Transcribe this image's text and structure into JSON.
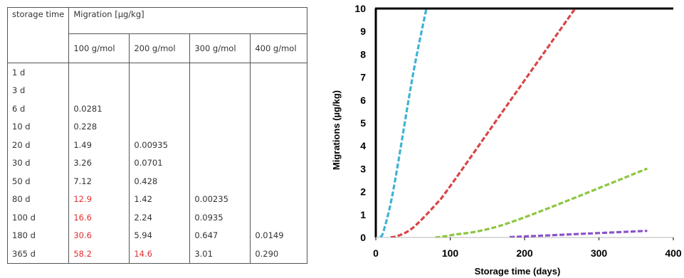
{
  "table": {
    "corner_label": "storage time",
    "group_header": "Migration [µg/kg]",
    "columns": [
      "100 g/mol",
      "200 g/mol",
      "300 g/mol",
      "400 g/mol"
    ],
    "rows": [
      {
        "time": "1 d",
        "cells": [
          "",
          "",
          "",
          ""
        ],
        "red": [
          false,
          false,
          false,
          false
        ]
      },
      {
        "time": "3 d",
        "cells": [
          "",
          "",
          "",
          ""
        ],
        "red": [
          false,
          false,
          false,
          false
        ]
      },
      {
        "time": "6 d",
        "cells": [
          "0.0281",
          "",
          "",
          ""
        ],
        "red": [
          false,
          false,
          false,
          false
        ]
      },
      {
        "time": "10 d",
        "cells": [
          "0.228",
          "",
          "",
          ""
        ],
        "red": [
          false,
          false,
          false,
          false
        ]
      },
      {
        "time": "20 d",
        "cells": [
          "1.49",
          "0.00935",
          "",
          ""
        ],
        "red": [
          false,
          false,
          false,
          false
        ]
      },
      {
        "time": "30 d",
        "cells": [
          "3.26",
          "0.0701",
          "",
          ""
        ],
        "red": [
          false,
          false,
          false,
          false
        ]
      },
      {
        "time": "50 d",
        "cells": [
          "7.12",
          "0.428",
          "",
          ""
        ],
        "red": [
          false,
          false,
          false,
          false
        ]
      },
      {
        "time": "80 d",
        "cells": [
          "12.9",
          "1.42",
          "0.00235",
          ""
        ],
        "red": [
          true,
          false,
          false,
          false
        ]
      },
      {
        "time": "100 d",
        "cells": [
          "16.6",
          "2.24",
          "0.0935",
          ""
        ],
        "red": [
          true,
          false,
          false,
          false
        ]
      },
      {
        "time": "180 d",
        "cells": [
          "30.6",
          "5.94",
          "0.647",
          "0.0149"
        ],
        "red": [
          true,
          false,
          false,
          false
        ]
      },
      {
        "time": "365 d",
        "cells": [
          "58.2",
          "14.6",
          "3.01",
          "0.290"
        ],
        "red": [
          true,
          true,
          false,
          false
        ]
      }
    ],
    "highlight_color": "#e03030"
  },
  "chart_data": {
    "type": "line",
    "title": "",
    "xlabel": "Storage time (days)",
    "ylabel": "Migrations (µg/kg)",
    "xlim": [
      0,
      400
    ],
    "ylim": [
      0,
      10
    ],
    "xticks": [
      0,
      100,
      200,
      300,
      400
    ],
    "yticks": [
      0,
      1,
      2,
      3,
      4,
      5,
      6,
      7,
      8,
      9,
      10
    ],
    "grid": false,
    "line_style": "dashed",
    "series": [
      {
        "color": "#3fb3d4",
        "x": [
          6,
          10,
          20,
          30,
          50,
          68
        ],
        "y": [
          0.0281,
          0.228,
          1.49,
          3.26,
          7.12,
          10
        ]
      },
      {
        "color": "#d94545",
        "x": [
          20,
          30,
          50,
          80,
          100,
          180,
          268
        ],
        "y": [
          0.00935,
          0.0701,
          0.428,
          1.42,
          2.24,
          5.94,
          10
        ]
      },
      {
        "color": "#8dc63f",
        "x": [
          80,
          100,
          180,
          365
        ],
        "y": [
          0.00235,
          0.0935,
          0.647,
          3.01
        ]
      },
      {
        "color": "#8a52c8",
        "x": [
          180,
          365
        ],
        "y": [
          0.0149,
          0.29
        ]
      }
    ]
  }
}
